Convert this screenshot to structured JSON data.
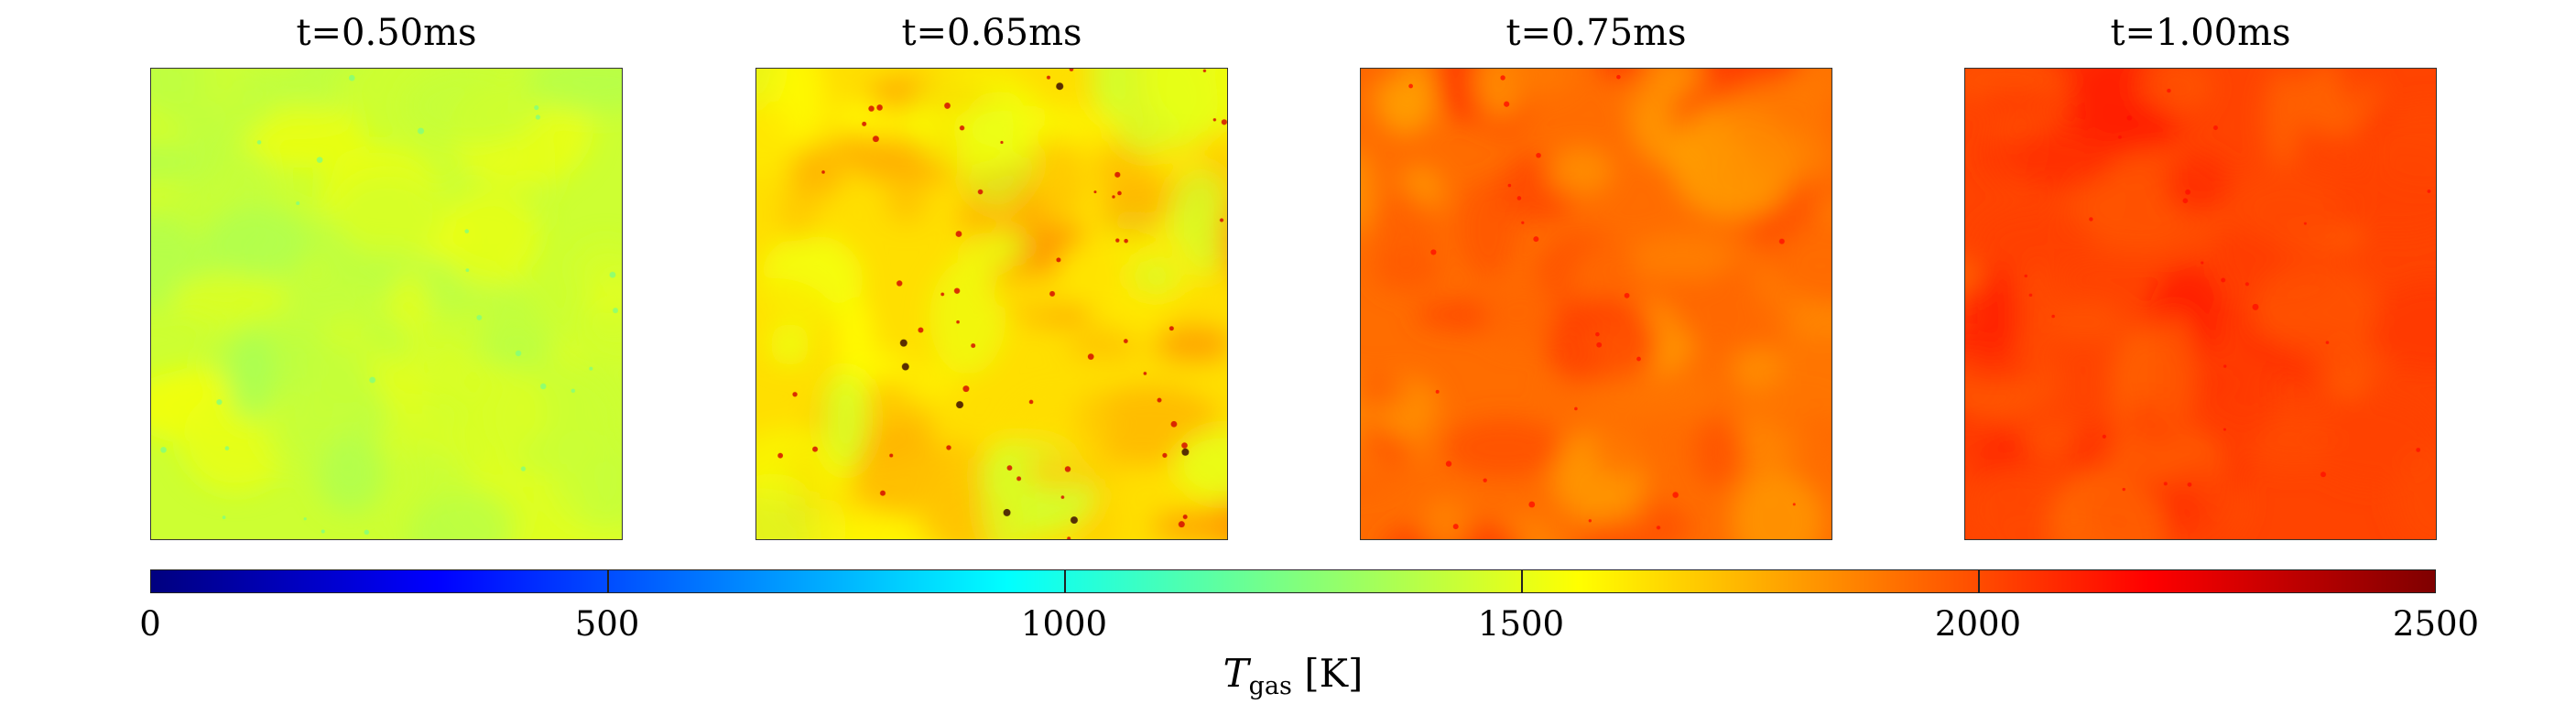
{
  "chart_data": {
    "type": "heatmap",
    "panels": [
      {
        "title": "t=0.50ms",
        "level": 1440,
        "variation": 90,
        "hotspot_level": 1250
      },
      {
        "title": "t=0.65ms",
        "level": 1640,
        "variation": 200,
        "hotspot_level": 2300
      },
      {
        "title": "t=0.75ms",
        "level": 1920,
        "variation": 150,
        "hotspot_level": 2150
      },
      {
        "title": "t=1.00ms",
        "level": 2020,
        "variation": 120,
        "hotspot_level": 2150
      }
    ],
    "colorbar": {
      "colormap": "jet",
      "range": [
        0,
        2500
      ],
      "ticks": [
        "0",
        "500",
        "1000",
        "1500",
        "2000",
        "2500"
      ],
      "label_symbol": "T",
      "label_subscript": "gas",
      "label_unit": "[K]"
    },
    "colors": {
      "jet_stops": [
        "#00007f",
        "#0000ff",
        "#007fff",
        "#00ffff",
        "#7fff7f",
        "#ffff00",
        "#ff7f00",
        "#ff0000",
        "#7f0000"
      ]
    }
  }
}
